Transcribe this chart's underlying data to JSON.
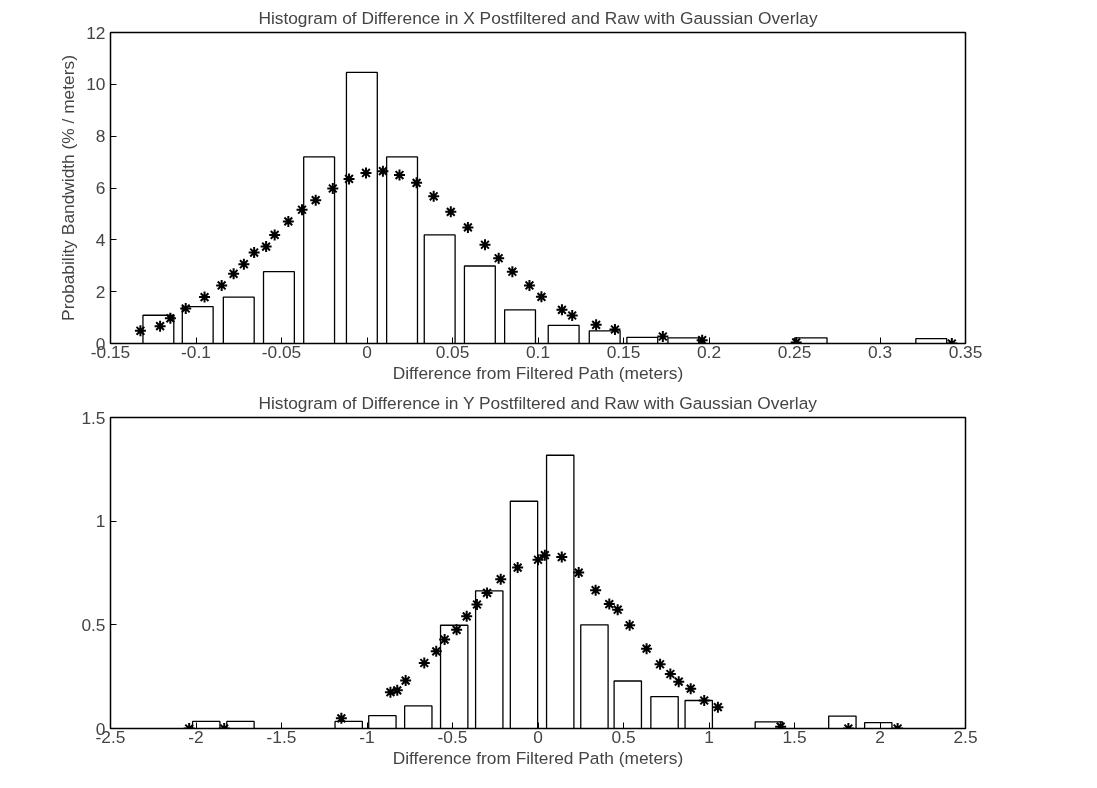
{
  "chart_data": [
    {
      "type": "bar",
      "title": "Histogram of Difference in X Postfiltered and Raw with Gaussian Overlay",
      "xlabel": "Difference from Filtered Path (meters)",
      "ylabel": "Probability Bandwidth (% / meters)",
      "xlim": [
        -0.15,
        0.35
      ],
      "xticks": [
        -0.15,
        -0.1,
        -0.05,
        0,
        0.05,
        0.1,
        0.15,
        0.2,
        0.25,
        0.3,
        0.35
      ],
      "ylim": [
        0,
        12
      ],
      "yticks": [
        0,
        2,
        4,
        6,
        8,
        10,
        12
      ],
      "grid": false,
      "marker": "cross",
      "series": [
        {
          "color": "#ffffff",
          "x": [
            -0.122,
            -0.099,
            -0.075,
            -0.0515,
            -0.028,
            -0.003,
            0.0205,
            0.0425,
            0.066,
            0.0895,
            0.115,
            0.139,
            0.161,
            0.185,
            0.26,
            0.33
          ],
          "values": [
            1.09,
            1.42,
            1.79,
            2.77,
            7.2,
            10.46,
            7.2,
            4.19,
            2.99,
            1.3,
            0.7,
            0.49,
            0.24,
            0.22,
            0.22,
            0.19
          ]
        },
        {
          "type": "scatter",
          "color": "#000000",
          "x": [
            -0.1325,
            -0.121,
            -0.115,
            -0.106,
            -0.095,
            -0.085,
            -0.078,
            -0.072,
            -0.066,
            -0.059,
            -0.054,
            -0.046,
            -0.038,
            -0.03,
            -0.02,
            -0.0105,
            -0.0006,
            0.0093,
            0.019,
            0.029,
            0.039,
            0.049,
            0.059,
            0.069,
            0.077,
            0.085,
            0.095,
            0.102,
            0.114,
            0.12,
            0.134,
            0.145,
            0.173,
            0.196,
            0.251,
            0.342
          ],
          "values": [
            0.49,
            0.67,
            0.97,
            1.35,
            1.79,
            2.24,
            2.69,
            3.06,
            3.51,
            3.74,
            4.19,
            4.71,
            5.16,
            5.53,
            5.98,
            6.35,
            6.58,
            6.65,
            6.5,
            6.2,
            5.68,
            5.08,
            4.48,
            3.81,
            3.29,
            2.77,
            2.24,
            1.8,
            1.3,
            1.08,
            0.72,
            0.54,
            0.27,
            0.13,
            0.04,
            0.0
          ]
        }
      ]
    },
    {
      "type": "bar",
      "title": "Histogram of Difference in Y Postfiltered and Raw with Gaussian Overlay",
      "xlabel": "Difference from Filtered Path (meters)",
      "xlim": [
        -2.5,
        2.5
      ],
      "xticks": [
        -2.5,
        -2,
        -1.5,
        -1,
        -0.5,
        0,
        0.5,
        1,
        1.5,
        2,
        2.5
      ],
      "ylim": [
        0,
        1.5
      ],
      "yticks": [
        0,
        0.5,
        1,
        1.5
      ],
      "grid": false,
      "marker": "cross",
      "series": [
        {
          "color": "#ffffff",
          "x": [
            -1.94,
            -1.74,
            -1.107,
            -0.91,
            -0.7,
            -0.49,
            -0.285,
            -0.082,
            0.13,
            0.33,
            0.525,
            0.74,
            0.94,
            1.35,
            1.78,
            1.99
          ],
          "values": [
            0.034,
            0.034,
            0.034,
            0.062,
            0.109,
            0.498,
            0.664,
            1.096,
            1.318,
            0.5,
            0.229,
            0.154,
            0.135,
            0.032,
            0.06,
            0.028
          ]
        },
        {
          "type": "scatter",
          "color": "#000000",
          "x": [
            -2.04,
            -1.835,
            -1.15,
            -0.863,
            -0.823,
            -0.774,
            -0.665,
            -0.595,
            -0.546,
            -0.476,
            -0.417,
            -0.357,
            -0.298,
            -0.218,
            -0.119,
            0.0,
            0.04,
            0.139,
            0.238,
            0.337,
            0.417,
            0.466,
            0.536,
            0.635,
            0.714,
            0.774,
            0.823,
            0.893,
            0.972,
            1.052,
            1.419,
            1.815,
            2.103
          ],
          "values": [
            0.0,
            0.0,
            0.049,
            0.175,
            0.184,
            0.231,
            0.316,
            0.372,
            0.429,
            0.476,
            0.541,
            0.598,
            0.654,
            0.72,
            0.776,
            0.814,
            0.836,
            0.827,
            0.752,
            0.667,
            0.6,
            0.573,
            0.498,
            0.385,
            0.31,
            0.263,
            0.226,
            0.192,
            0.135,
            0.103,
            0.009,
            0.0,
            0.0
          ]
        }
      ]
    }
  ]
}
